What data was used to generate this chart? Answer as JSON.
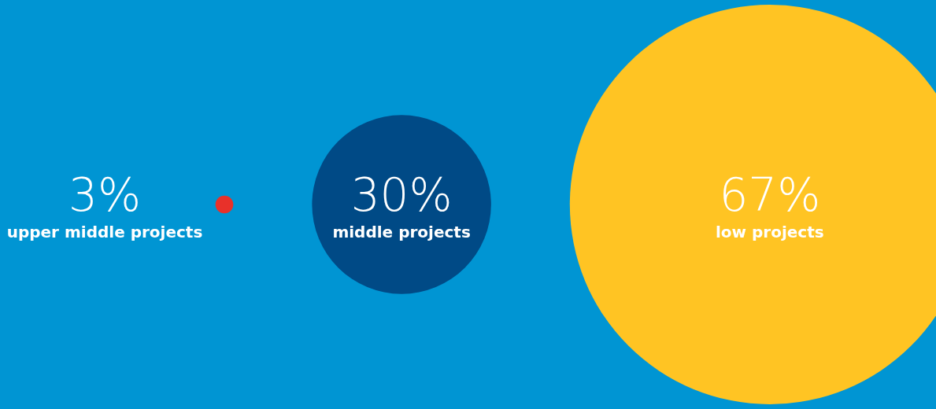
{
  "chart_data": {
    "type": "other",
    "categories": [
      "upper middle projects",
      "middle projects",
      "low projects"
    ],
    "values": [
      3,
      30,
      67
    ],
    "value_labels": [
      "3%",
      "30%",
      "67%"
    ],
    "colors": [
      "#e8312a",
      "#004a86",
      "#ffc423"
    ]
  }
}
